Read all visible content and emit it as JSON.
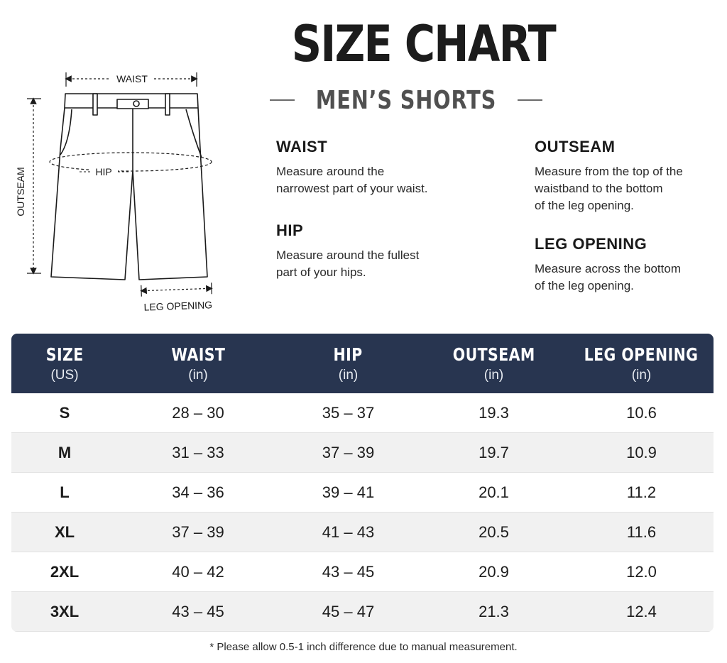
{
  "header": {
    "title": "SIZE CHART",
    "subtitle": "MEN’S SHORTS"
  },
  "diagram": {
    "waist_label": "WAIST",
    "hip_label": "HIP",
    "outseam_label": "OUTSEAM",
    "leg_opening_label": "LEG OPENING"
  },
  "measurements": [
    {
      "name": "WAIST",
      "desc": "Measure around the\nnarrowest part of your waist."
    },
    {
      "name": "HIP",
      "desc": "Measure around the fullest\npart of your hips."
    },
    {
      "name": "OUTSEAM",
      "desc": "Measure from the top of the\nwaistband to the bottom\nof the leg opening."
    },
    {
      "name": "LEG OPENING",
      "desc": "Measure across the bottom\nof the leg opening."
    }
  ],
  "table": {
    "columns": [
      {
        "title": "SIZE",
        "unit": "(US)"
      },
      {
        "title": "WAIST",
        "unit": "(in)"
      },
      {
        "title": "HIP",
        "unit": "(in)"
      },
      {
        "title": "OUTSEAM",
        "unit": "(in)"
      },
      {
        "title": "LEG OPENING",
        "unit": "(in)"
      }
    ],
    "rows": [
      [
        "S",
        "28 – 30",
        "35 – 37",
        "19.3",
        "10.6"
      ],
      [
        "M",
        "31 – 33",
        "37 – 39",
        "19.7",
        "10.9"
      ],
      [
        "L",
        "34 – 36",
        "39 – 41",
        "20.1",
        "11.2"
      ],
      [
        "XL",
        "37 – 39",
        "41 – 43",
        "20.5",
        "11.6"
      ],
      [
        "2XL",
        "40 – 42",
        "43 – 45",
        "20.9",
        "12.0"
      ],
      [
        "3XL",
        "43 – 45",
        "45 – 47",
        "21.3",
        "12.4"
      ]
    ],
    "header_color": "#283550"
  },
  "footnote": "* Please allow 0.5-1 inch difference due to manual measurement."
}
